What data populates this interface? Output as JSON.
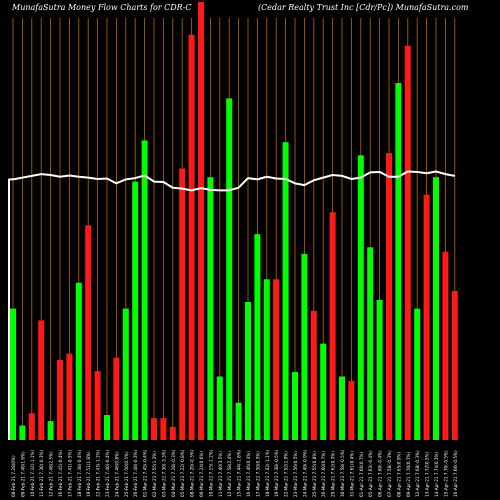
{
  "header": {
    "left": "MunafaSutra  Money Flow  Charts for CDR-C",
    "right": "(Cedar Realty Trust Inc [Cdr/Pc]) MunafaSutra.com"
  },
  "colors": {
    "background": "#000000",
    "up": "#00ff00",
    "down": "#ff1a1a",
    "grid": "#b86a00",
    "line": "#ffffff",
    "label": "#ffffff"
  },
  "chart_data": {
    "type": "bar",
    "title": "MunafaSutra  Money Flow  Charts for CDR-C",
    "subtitle": "(Cedar Realty Trust Inc [Cdr/Pc]) MunafaSutra.com",
    "ylim": [
      0,
      100
    ],
    "grid": "vertical",
    "categories": [
      "08-Feb-21",
      "09-Feb-21",
      "10-Feb-21",
      "11-Feb-21",
      "12-Feb-21",
      "16-Feb-21",
      "17-Feb-21",
      "18-Feb-21",
      "19-Feb-21",
      "22-Feb-21",
      "23-Feb-21",
      "24-Feb-21",
      "25-Feb-21",
      "26-Feb-21",
      "01-Mar-21",
      "02-Mar-21",
      "03-Mar-21",
      "04-Mar-21",
      "05-Mar-21",
      "08-Mar-21",
      "09-Mar-21",
      "10-Mar-21",
      "11-Mar-21",
      "12-Mar-21",
      "15-Mar-21",
      "16-Mar-21",
      "17-Mar-21",
      "18-Mar-21",
      "19-Mar-21",
      "22-Mar-21",
      "23-Mar-21",
      "24-Mar-21",
      "25-Mar-21",
      "26-Mar-21",
      "29-Mar-21",
      "30-Mar-21",
      "31-Mar-21",
      "01-Apr-21",
      "05-Apr-21",
      "06-Apr-21",
      "07-Apr-21",
      "08-Apr-21",
      "09-Apr-21",
      "12-Apr-21",
      "13-Apr-21",
      "14-Apr-21",
      "15-Apr-21",
      "16-Apr-21"
    ],
    "x_labels": [
      "08-Feb-21 7.28(0%)",
      "09-Feb-21 7.40(1.6%)",
      "10-Feb-21 7.32(-1.1%)",
      "11-Feb-21 7.30(-0.3%)",
      "12-Feb-21 7.48(2.5%)",
      "16-Feb-21 7.45(-0.4%)",
      "17-Feb-21 7.41(-0.5%)",
      "18-Feb-21 7.38(-0.4%)",
      "19-Feb-21 7.51(1.8%)",
      "22-Feb-21 7.43(-1.1%)",
      "23-Feb-21 7.40(-0.4%)",
      "24-Feb-21 7.46(0.8%)",
      "25-Feb-21 7.50(0.5%)",
      "26-Feb-21 7.48(-0.3%)",
      "01-Mar-21 7.45(-0.4%)",
      "02-Mar-21 7.55(1.3%)",
      "03-Mar-21 7.30(-3.3%)",
      "04-Mar-21 7.28(-0.3%)",
      "05-Mar-21 7.22(-0.8%)",
      "08-Mar-21 7.20(-0.3%)",
      "09-Mar-21 7.24(0.6%)",
      "10-Mar-21 7.15(-1.2%)",
      "11-Mar-21 7.40(3.5%)",
      "12-Mar-21 7.58(2.4%)",
      "15-Mar-21 7.44(-1.8%)",
      "16-Mar-21 7.46(0.3%)",
      "17-Mar-21 7.50(0.5%)",
      "18-Mar-21 7.42(-1.1%)",
      "19-Mar-21 7.38(-0.5%)",
      "22-Mar-21 7.52(1.9%)",
      "23-Mar-21 7.56(0.5%)",
      "24-Mar-21 7.49(-0.9%)",
      "25-Mar-21 7.55(0.8%)",
      "26-Mar-21 7.60(0.7%)",
      "29-Mar-21 7.62(0.3%)",
      "30-Mar-21 7.58(-0.5%)",
      "31-Mar-21 7.61(0.4%)",
      "01-Apr-21 7.66(0.7%)",
      "05-Apr-21 7.63(-0.4%)",
      "06-Apr-21 7.60(-0.4%)",
      "07-Apr-21 7.58(-0.3%)",
      "08-Apr-21 7.65(0.9%)",
      "09-Apr-21 7.70(0.7%)",
      "12-Apr-21 7.68(-0.3%)",
      "13-Apr-21 7.72(0.5%)",
      "14-Apr-21 7.74(0.3%)",
      "15-Apr-21 7.70(-0.5%)",
      "16-Apr-21 7.66(-0.5%)"
    ],
    "series": [
      {
        "flow": [
          "up",
          "up",
          "down",
          "down",
          "up",
          "down",
          "down",
          "up",
          "down",
          "down",
          "up",
          "down",
          "up",
          "up",
          "up",
          "down",
          "down",
          "down",
          "down",
          "down",
          "down",
          "up",
          "up",
          "up",
          "up",
          "up",
          "up",
          "up",
          "down",
          "up",
          "up",
          "up",
          "down",
          "up",
          "down",
          "up",
          "down",
          "up",
          "up",
          "up",
          "down",
          "up",
          "down",
          "up",
          "down",
          "up",
          "down",
          "down"
        ],
        "values": [
          30.0,
          3.3,
          6.1,
          27.3,
          4.3,
          18.3,
          19.7,
          35.9,
          49.0,
          15.7,
          5.7,
          18.8,
          30.0,
          59.0,
          68.4,
          5.0,
          5.0,
          3.0,
          62.0,
          92.5,
          100.0,
          60.0,
          14.5,
          78.0,
          8.5,
          31.5,
          47.0,
          36.7,
          36.7,
          68.0,
          15.5,
          42.5,
          29.5,
          22.0,
          52.0,
          14.5,
          13.5,
          65.0,
          44.0,
          32.0,
          65.5,
          81.5,
          90.0,
          30.0,
          56.0,
          60.0,
          43.0,
          34.0
        ]
      },
      {
        "line": [
          59.5,
          59.9,
          60.3,
          60.7,
          60.5,
          60.1,
          60.4,
          60.1,
          59.9,
          59.6,
          59.7,
          58.6,
          59.5,
          59.8,
          60.4,
          59.0,
          58.9,
          57.6,
          57.4,
          57.0,
          57.5,
          57.1,
          57.0,
          57.0,
          57.6,
          59.8,
          59.5,
          60.1,
          59.7,
          59.6,
          58.6,
          58.2,
          59.3,
          59.9,
          60.5,
          60.3,
          59.6,
          59.9,
          61.1,
          61.2,
          60.1,
          60.1,
          61.3,
          61.2,
          60.9,
          61.3,
          60.7,
          60.3
        ]
      }
    ]
  }
}
